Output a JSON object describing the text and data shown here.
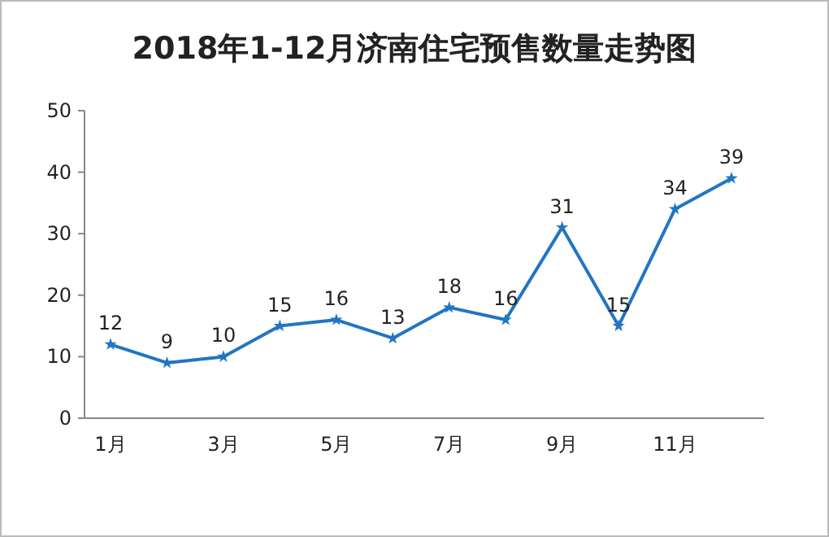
{
  "chart_data": {
    "type": "line",
    "title": "2018年1-12月济南住宅预售数量走势图",
    "categories": [
      "1月",
      null,
      "3月",
      null,
      "5月",
      null,
      "7月",
      null,
      "9月",
      null,
      "11月",
      null
    ],
    "series": [
      {
        "color": "#2175c4",
        "values": [
          12,
          9,
          10,
          15,
          16,
          13,
          18,
          16,
          31,
          15,
          34,
          39
        ]
      }
    ],
    "ylim": [
      0,
      50
    ],
    "yticks": [
      0,
      10,
      20,
      30,
      40,
      50
    ],
    "data_labels": true,
    "marker": "star",
    "grid": false
  }
}
